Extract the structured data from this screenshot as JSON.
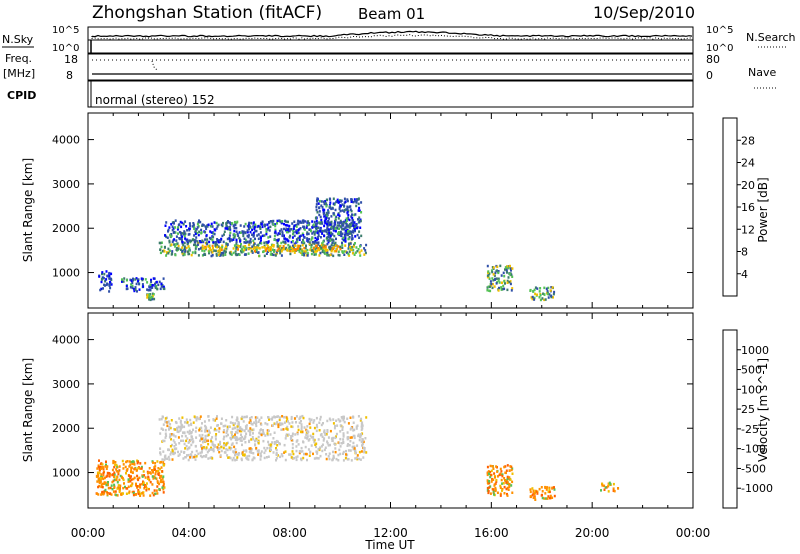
{
  "header": {
    "station": "Zhongshan Station (fitACF)",
    "beam": "Beam 01",
    "date": "10/Sep/2010"
  },
  "summary_panels": {
    "nsky_label": "N.Sky",
    "nsearch_label": "N.Search",
    "noise_ticks_left": [
      "10^5",
      "10^0"
    ],
    "noise_ticks_right": [
      "10^5",
      "10^0"
    ],
    "freq_label": "Freq.",
    "freq_unit": "[MHz]",
    "freq_ticks": [
      "18",
      "8"
    ],
    "nave_label": "Nave",
    "nave_ticks": [
      "80",
      "0"
    ],
    "cpid_label": "CPID",
    "cpid_text": "normal (stereo) 152"
  },
  "colors": {
    "power_scale": [
      "#0000ff",
      "#2f4fa8",
      "#3c7d6b",
      "#55c255",
      "#f0c000",
      "#ff8000",
      "#ff5000",
      "#ff0000"
    ],
    "velocity_scale": [
      "#ff0000",
      "#ff6000",
      "#ff9000",
      "#f0c000",
      "#c8c8c8",
      "#55c255",
      "#2f8a5a",
      "#2f4fa8",
      "#0000ff"
    ],
    "gray_scatter": "#c8c8c8"
  },
  "chart_data": [
    {
      "type": "heatmap",
      "panel": "power",
      "ylabel": "Slant Range [km]",
      "yticks": [
        "4000",
        "3000",
        "2000",
        "1000"
      ],
      "ylim": [
        200,
        4600
      ],
      "xlim": [
        0,
        24
      ],
      "colorbar_label": "Power [dB]",
      "colorbar_ticks": [
        "28",
        "24",
        "20",
        "16",
        "12",
        "8",
        "4"
      ],
      "colorbar_range": [
        0,
        32
      ],
      "regions": [
        {
          "t": [
            0.4,
            0.9
          ],
          "r": [
            600,
            1100
          ],
          "level": "low"
        },
        {
          "t": [
            1.3,
            3.0
          ],
          "r": [
            600,
            900
          ],
          "level": "low"
        },
        {
          "t": [
            2.3,
            2.6
          ],
          "r": [
            400,
            550
          ],
          "level": "mid"
        },
        {
          "t": [
            2.8,
            11.0
          ],
          "r": [
            1400,
            1700
          ],
          "level": "mid"
        },
        {
          "t": [
            4.5,
            10.0
          ],
          "r": [
            1500,
            1650
          ],
          "level": "high"
        },
        {
          "t": [
            3.0,
            10.5
          ],
          "r": [
            1700,
            2200
          ],
          "level": "low"
        },
        {
          "t": [
            9.0,
            10.8
          ],
          "r": [
            1800,
            2700
          ],
          "level": "low"
        },
        {
          "t": [
            15.8,
            16.8
          ],
          "r": [
            600,
            1200
          ],
          "level": "mid"
        },
        {
          "t": [
            17.5,
            18.5
          ],
          "r": [
            400,
            700
          ],
          "level": "mid"
        }
      ]
    },
    {
      "type": "heatmap",
      "panel": "velocity",
      "ylabel": "Slant Range [km]",
      "yticks": [
        "4000",
        "3000",
        "2000",
        "1000"
      ],
      "ylim": [
        200,
        4600
      ],
      "xlim": [
        0,
        24
      ],
      "xticks": [
        "00:00",
        "04:00",
        "08:00",
        "12:00",
        "16:00",
        "20:00",
        "00:00"
      ],
      "xlabel": "Time UT",
      "colorbar_label": "Velocity [m s^-1]",
      "colorbar_ticks": [
        "1000",
        "500",
        "100",
        "25",
        "-25",
        "-100",
        "-500",
        "-1000"
      ],
      "regions": [
        {
          "t": [
            0.3,
            3.0
          ],
          "r": [
            500,
            1300
          ],
          "level": "neg"
        },
        {
          "t": [
            2.8,
            11.0
          ],
          "r": [
            1300,
            2300
          ],
          "level": "zero"
        },
        {
          "t": [
            15.8,
            16.8
          ],
          "r": [
            500,
            1200
          ],
          "level": "neg"
        },
        {
          "t": [
            17.5,
            18.5
          ],
          "r": [
            400,
            700
          ],
          "level": "neg"
        },
        {
          "t": [
            20.3,
            21.0
          ],
          "r": [
            600,
            800
          ],
          "level": "neg"
        }
      ]
    }
  ]
}
